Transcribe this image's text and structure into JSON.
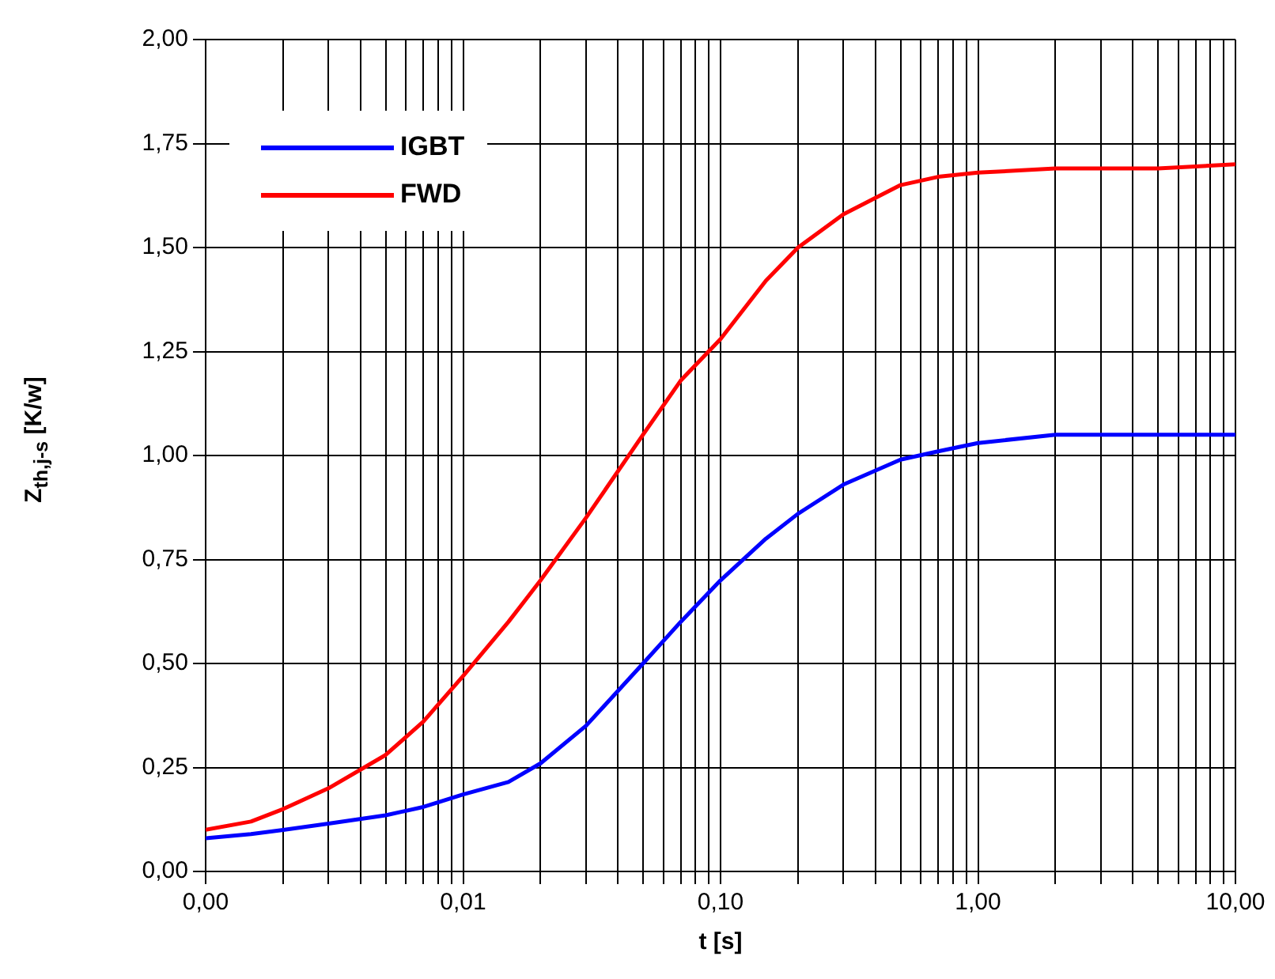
{
  "chart_data": {
    "type": "line",
    "xlabel": "t [s]",
    "ylabel": "Z$_{th,j-s}$ [K/w]",
    "log": "x",
    "xlim": [
      0.001,
      10
    ],
    "ylim": [
      0,
      2
    ],
    "xticks": [
      {
        "value": 0.001,
        "label": "0,00"
      },
      {
        "value": 0.002,
        "label": null
      },
      {
        "value": 0.003,
        "label": null
      },
      {
        "value": 0.004,
        "label": null
      },
      {
        "value": 0.005,
        "label": null
      },
      {
        "value": 0.006,
        "label": null
      },
      {
        "value": 0.007,
        "label": null
      },
      {
        "value": 0.008,
        "label": null
      },
      {
        "value": 0.009,
        "label": null
      },
      {
        "value": 0.01,
        "label": "0,01"
      },
      {
        "value": 0.02,
        "label": null
      },
      {
        "value": 0.03,
        "label": null
      },
      {
        "value": 0.04,
        "label": null
      },
      {
        "value": 0.05,
        "label": null
      },
      {
        "value": 0.06,
        "label": null
      },
      {
        "value": 0.07,
        "label": null
      },
      {
        "value": 0.08,
        "label": null
      },
      {
        "value": 0.09,
        "label": null
      },
      {
        "value": 0.1,
        "label": "0,10"
      },
      {
        "value": 0.2,
        "label": null
      },
      {
        "value": 0.3,
        "label": null
      },
      {
        "value": 0.4,
        "label": null
      },
      {
        "value": 0.5,
        "label": null
      },
      {
        "value": 0.6,
        "label": null
      },
      {
        "value": 0.7,
        "label": null
      },
      {
        "value": 0.8,
        "label": null
      },
      {
        "value": 0.9,
        "label": null
      },
      {
        "value": 1,
        "label": "1,00"
      },
      {
        "value": 2,
        "label": null
      },
      {
        "value": 3,
        "label": null
      },
      {
        "value": 4,
        "label": null
      },
      {
        "value": 5,
        "label": null
      },
      {
        "value": 6,
        "label": null
      },
      {
        "value": 7,
        "label": null
      },
      {
        "value": 8,
        "label": null
      },
      {
        "value": 9,
        "label": null
      },
      {
        "value": 10,
        "label": "10,00"
      }
    ],
    "yticks": [
      {
        "value": 0,
        "label": "0,00"
      },
      {
        "value": 0.25,
        "label": "0,25"
      },
      {
        "value": 0.5,
        "label": "0,50"
      },
      {
        "value": 0.75,
        "label": "0,75"
      },
      {
        "value": 1,
        "label": "1,00"
      },
      {
        "value": 1.25,
        "label": "1,25"
      },
      {
        "value": 1.5,
        "label": "1,50"
      },
      {
        "value": 1.75,
        "label": "1,75"
      },
      {
        "value": 2,
        "label": "2,00"
      }
    ],
    "grid": true,
    "legend": "top left",
    "marker": "none",
    "line_style": "solid",
    "x": [
      0.001,
      0.0015,
      0.002,
      0.003,
      0.005,
      0.007,
      0.01,
      0.015,
      0.02,
      0.03,
      0.05,
      0.07,
      0.1,
      0.15,
      0.2,
      0.3,
      0.5,
      0.7,
      1,
      2,
      5,
      10
    ],
    "series": [
      {
        "name": "IGBT",
        "color": "#0000ff",
        "values": [
          0.08,
          0.09,
          0.1,
          0.115,
          0.135,
          0.155,
          0.185,
          0.215,
          0.26,
          0.35,
          0.5,
          0.6,
          0.7,
          0.8,
          0.86,
          0.93,
          0.99,
          1.01,
          1.03,
          1.05,
          1.05,
          1.05
        ]
      },
      {
        "name": "FWD",
        "color": "#ff0000",
        "values": [
          0.1,
          0.12,
          0.15,
          0.2,
          0.28,
          0.36,
          0.47,
          0.6,
          0.7,
          0.85,
          1.05,
          1.18,
          1.28,
          1.42,
          1.5,
          1.58,
          1.65,
          1.67,
          1.68,
          1.69,
          1.69,
          1.7
        ]
      }
    ]
  }
}
